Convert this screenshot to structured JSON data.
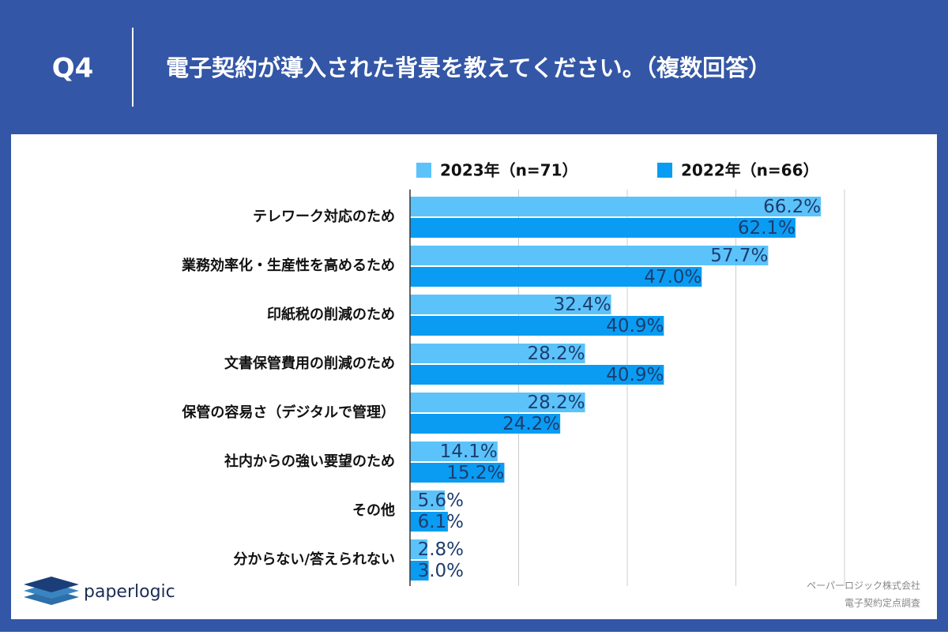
{
  "header": {
    "label": "Q4"
  },
  "chart_data": {
    "type": "hbar",
    "title": "電子契約が導入された背景を教えてください。（複数回答）",
    "categories": [
      "テレワーク対応のため",
      "業務効率化・生産性を高めるため",
      "印紙税の削減のため",
      "文書保管費用の削減のため",
      "保管の容易さ（デジタルで管理）",
      "社内からの強い要望のため",
      "その他",
      "分からない/答えられない"
    ],
    "series": [
      {
        "name": "2023年（n=71）",
        "color": "#5bc3fa",
        "values": [
          66.2,
          57.7,
          32.4,
          28.2,
          28.2,
          14.1,
          5.6,
          2.8
        ],
        "value_labels": [
          "66.2%",
          "57.7%",
          "32.4%",
          "28.2%",
          "28.2%",
          "14.1%",
          "5.6%",
          "2.8%"
        ]
      },
      {
        "name": "2022年（n=66）",
        "color": "#0a9cf2",
        "values": [
          62.1,
          47.0,
          40.9,
          40.9,
          24.2,
          15.2,
          6.1,
          3.0
        ],
        "value_labels": [
          "62.1%",
          "47.0%",
          "40.9%",
          "40.9%",
          "24.2%",
          "15.2%",
          "6.1%",
          "3.0%"
        ]
      }
    ],
    "xlim": [
      0,
      70
    ],
    "xticks": [
      0,
      17.5,
      35,
      52.5,
      70
    ],
    "grid": true
  },
  "footer": {
    "logo": "paperlogic",
    "source": [
      "ペーパーロジック株式会社",
      "電子契約定点調査"
    ]
  }
}
